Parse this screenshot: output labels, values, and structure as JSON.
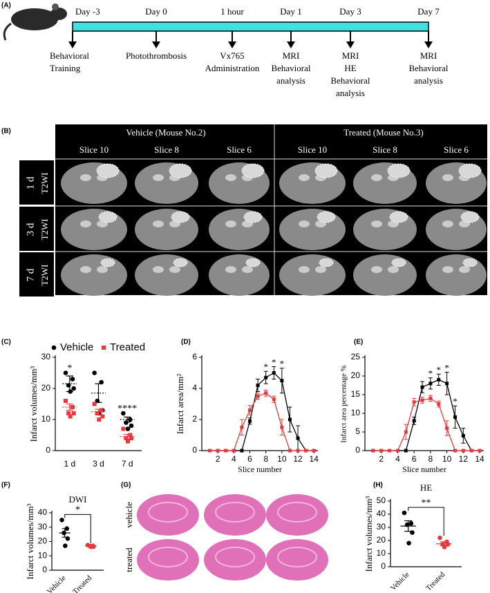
{
  "panel_labels": [
    "(A)",
    "(B)",
    "(C)",
    "(D)",
    "(E)",
    "(F)",
    "(G)",
    "(H)"
  ],
  "timeline": {
    "events": [
      {
        "time": "Day -3",
        "label": [
          "Behavioral",
          "Training"
        ]
      },
      {
        "time": "Day 0",
        "label": [
          "Photothrombosis"
        ]
      },
      {
        "time": "1 hour",
        "label": [
          "Vx765",
          "Administration"
        ]
      },
      {
        "time": "Day 1",
        "label": [
          "MRI",
          "Behavioral",
          "analysis"
        ]
      },
      {
        "time": "Day 3",
        "label": [
          "MRI",
          "HE",
          "Behavioral",
          "analysis"
        ]
      },
      {
        "time": "Day 7",
        "label": [
          "MRI",
          "Behavioral",
          "analysis"
        ]
      }
    ]
  },
  "mri": {
    "groups": [
      "Vehicle (Mouse  No.2)",
      "Treated (Mouse  No.3)"
    ],
    "slices": [
      "Slice 10",
      "Slice 8",
      "Slice 6",
      "Slice 10",
      "Slice 8",
      "Slice 6"
    ],
    "rows": [
      {
        "time": "1 d",
        "sequence": "T2WI"
      },
      {
        "time": "3 d",
        "sequence": "T2WI"
      },
      {
        "time": "7 d",
        "sequence": "T2WI"
      }
    ]
  },
  "he": {
    "rows": [
      "vehicle",
      "treated"
    ]
  },
  "chart_data": [
    {
      "type": "dot",
      "y_label": "Infarct volumes/mm³",
      "categories": [
        "1 d",
        "3 d",
        "7 d"
      ],
      "ylim": [
        0,
        30
      ],
      "yticks": [
        0,
        10,
        20,
        30
      ],
      "series": [
        {
          "name": "Vehicle",
          "color": "#000000",
          "marker": "circle",
          "values": [
            [
              25,
              23,
              21,
              20,
              19
            ],
            [
              25,
              22,
              16,
              13,
              12
            ],
            [
              12,
              10,
              9,
              8,
              7
            ]
          ],
          "means": [
            21.5,
            18.5,
            10
          ],
          "errors": [
            2.5,
            3,
            0.8
          ]
        },
        {
          "name": "Treated",
          "color": "#e8383d",
          "marker": "square",
          "values": [
            [
              16,
              14,
              12,
              12,
              11
            ],
            [
              15,
              13,
              12,
              11,
              10
            ],
            [
              7,
              5,
              4,
              4,
              3
            ]
          ],
          "means": [
            14,
            12.5,
            4.5
          ],
          "errors": [
            1,
            0.8,
            0.7
          ]
        }
      ],
      "annotations": [
        {
          "text": "*",
          "category": 0
        },
        {
          "text": "****",
          "category": 2
        }
      ]
    },
    {
      "type": "line",
      "x_label": "Slice number",
      "y_label": "Infarct area/mm²",
      "x": [
        1,
        2,
        3,
        4,
        5,
        6,
        7,
        8,
        9,
        10,
        11,
        12,
        13,
        14
      ],
      "xlim": [
        0,
        14.5
      ],
      "xticks": [
        2,
        4,
        6,
        8,
        10,
        12,
        14
      ],
      "ylim": [
        0,
        6
      ],
      "yticks": [
        0,
        2,
        4,
        6
      ],
      "series": [
        {
          "color": "#000000",
          "values": [
            0,
            0,
            0,
            0,
            0,
            1.9,
            4.2,
            4.7,
            5.0,
            4.5,
            2.0,
            0.8,
            0,
            0
          ],
          "errors": [
            0,
            0,
            0,
            0,
            0,
            0.2,
            0.4,
            0.4,
            0.4,
            0.8,
            0.8,
            0.8,
            0,
            0
          ]
        },
        {
          "color": "#e8383d",
          "values": [
            0,
            0,
            0,
            0,
            1.5,
            2.6,
            3.5,
            3.7,
            3.3,
            1.5,
            0,
            0,
            0,
            0
          ],
          "errors": [
            0,
            0,
            0,
            0,
            0.5,
            0.3,
            0.2,
            0.2,
            0.2,
            0.5,
            0,
            0,
            0,
            0
          ]
        }
      ],
      "annotations": [
        {
          "text": "*",
          "x": 8
        },
        {
          "text": "*",
          "x": 9
        },
        {
          "text": "*",
          "x": 10
        }
      ]
    },
    {
      "type": "line",
      "x_label": "Slice number",
      "y_label": "Infarct area percentage %",
      "x": [
        1,
        2,
        3,
        4,
        5,
        6,
        7,
        8,
        9,
        10,
        11,
        12,
        13,
        14
      ],
      "xlim": [
        0,
        14.5
      ],
      "xticks": [
        2,
        4,
        6,
        8,
        10,
        12,
        14
      ],
      "ylim": [
        0,
        25
      ],
      "yticks": [
        0,
        5,
        10,
        15,
        20,
        25
      ],
      "series": [
        {
          "color": "#000000",
          "values": [
            0,
            0,
            0,
            0,
            0,
            8,
            17,
            18,
            19,
            18,
            9,
            4,
            0,
            0
          ],
          "errors": [
            0,
            0,
            0,
            0,
            0,
            1,
            1.5,
            1.5,
            1.5,
            3,
            3,
            2,
            0,
            0
          ]
        },
        {
          "color": "#e8383d",
          "values": [
            0,
            0,
            0,
            0,
            5,
            13,
            13.5,
            14,
            12.5,
            6,
            0,
            0,
            0,
            0
          ],
          "errors": [
            0,
            0,
            0,
            0,
            2,
            1,
            0.8,
            0.8,
            0.8,
            2,
            0,
            0,
            0,
            0
          ]
        }
      ],
      "annotations": [
        {
          "text": "*",
          "x": 8
        },
        {
          "text": "*",
          "x": 9
        },
        {
          "text": "*",
          "x": 10
        },
        {
          "text": "*",
          "x": 11
        }
      ]
    },
    {
      "type": "dot",
      "title": "DWI",
      "y_label": "Infarct volumes/mm³",
      "categories": [
        "Vehicle",
        "Treated"
      ],
      "ylim": [
        0,
        40
      ],
      "yticks": [
        0,
        10,
        20,
        30,
        40
      ],
      "colors": [
        "#000000",
        "#e8383d"
      ],
      "values": [
        [
          35,
          29,
          26,
          22,
          17
        ],
        [
          17.5,
          17,
          16.8,
          16.5,
          16.3
        ]
      ],
      "means": [
        26,
        17
      ],
      "errors": [
        3,
        0.3
      ],
      "annotations": [
        {
          "text": "*"
        }
      ]
    },
    {
      "type": "dot",
      "title": "HE",
      "y_label": "Infarct volumes/mm³",
      "categories": [
        "Vehicle",
        "Treated"
      ],
      "ylim": [
        0,
        50
      ],
      "yticks": [
        0,
        10,
        20,
        30,
        40,
        50
      ],
      "colors": [
        "#000000",
        "#e8383d"
      ],
      "values": [
        [
          41,
          33,
          32,
          26,
          18
        ],
        [
          22,
          19,
          17,
          17,
          15
        ]
      ],
      "means": [
        31,
        17.5
      ],
      "errors": [
        4,
        1.5
      ],
      "annotations": [
        {
          "text": "**"
        }
      ]
    }
  ]
}
